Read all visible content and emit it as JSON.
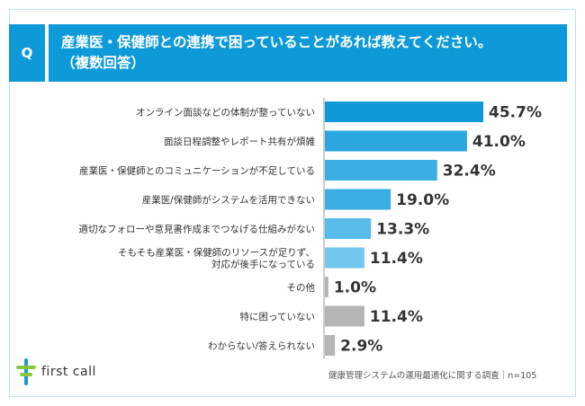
{
  "header": {
    "q_label": "Q",
    "question_line1": "産業医・保健師との連携で困っていることがあれば教えてください。",
    "question_line2": "（複数回答）"
  },
  "footer": {
    "logo_text": "first call",
    "source": "健康管理システムの運用最適化に関する調査｜n=105"
  },
  "colors": {
    "header": "#0e9ad8",
    "dark_blue": "#0e9ad8",
    "mid_blue": "#3aaee3",
    "light_blue": "#73c7ee",
    "gray": "#b5b5b5",
    "logo_green": "#8cc63f",
    "logo_blue": "#1a9bd7"
  },
  "chart_data": {
    "type": "bar",
    "orientation": "horizontal",
    "unit": "%",
    "categories": [
      [
        "オンライン面談などの体制が整っていない"
      ],
      [
        "面談日程調整やレポート共有が煩雑"
      ],
      [
        "産業医・保健師とのコミュニケーションが不足している"
      ],
      [
        "産業医/保健師がシステムを活用できない"
      ],
      [
        "適切なフォローや意見書作成までつなげる仕組みがない"
      ],
      [
        "そもそも産業医・保健師のリソースが足りず、",
        "対応が後手になっている"
      ],
      [
        "その他"
      ],
      [
        "特に困っていない"
      ],
      [
        "わからない/答えられない"
      ]
    ],
    "values": [
      45.7,
      41.0,
      32.4,
      19.0,
      13.3,
      11.4,
      1.0,
      11.4,
      2.9
    ],
    "value_labels": [
      "45.7%",
      "41.0%",
      "32.4%",
      "19.0%",
      "13.3%",
      "11.4%",
      "1.0%",
      "11.4%",
      "2.9%"
    ],
    "bar_colors": [
      "#0e9ad8",
      "#2ba6df",
      "#3aaee3",
      "#3aaee3",
      "#58bbe9",
      "#73c7ee",
      "#b5b5b5",
      "#b5b5b5",
      "#b5b5b5"
    ],
    "xlim": [
      0,
      50
    ],
    "grid": false,
    "legend": "none"
  }
}
